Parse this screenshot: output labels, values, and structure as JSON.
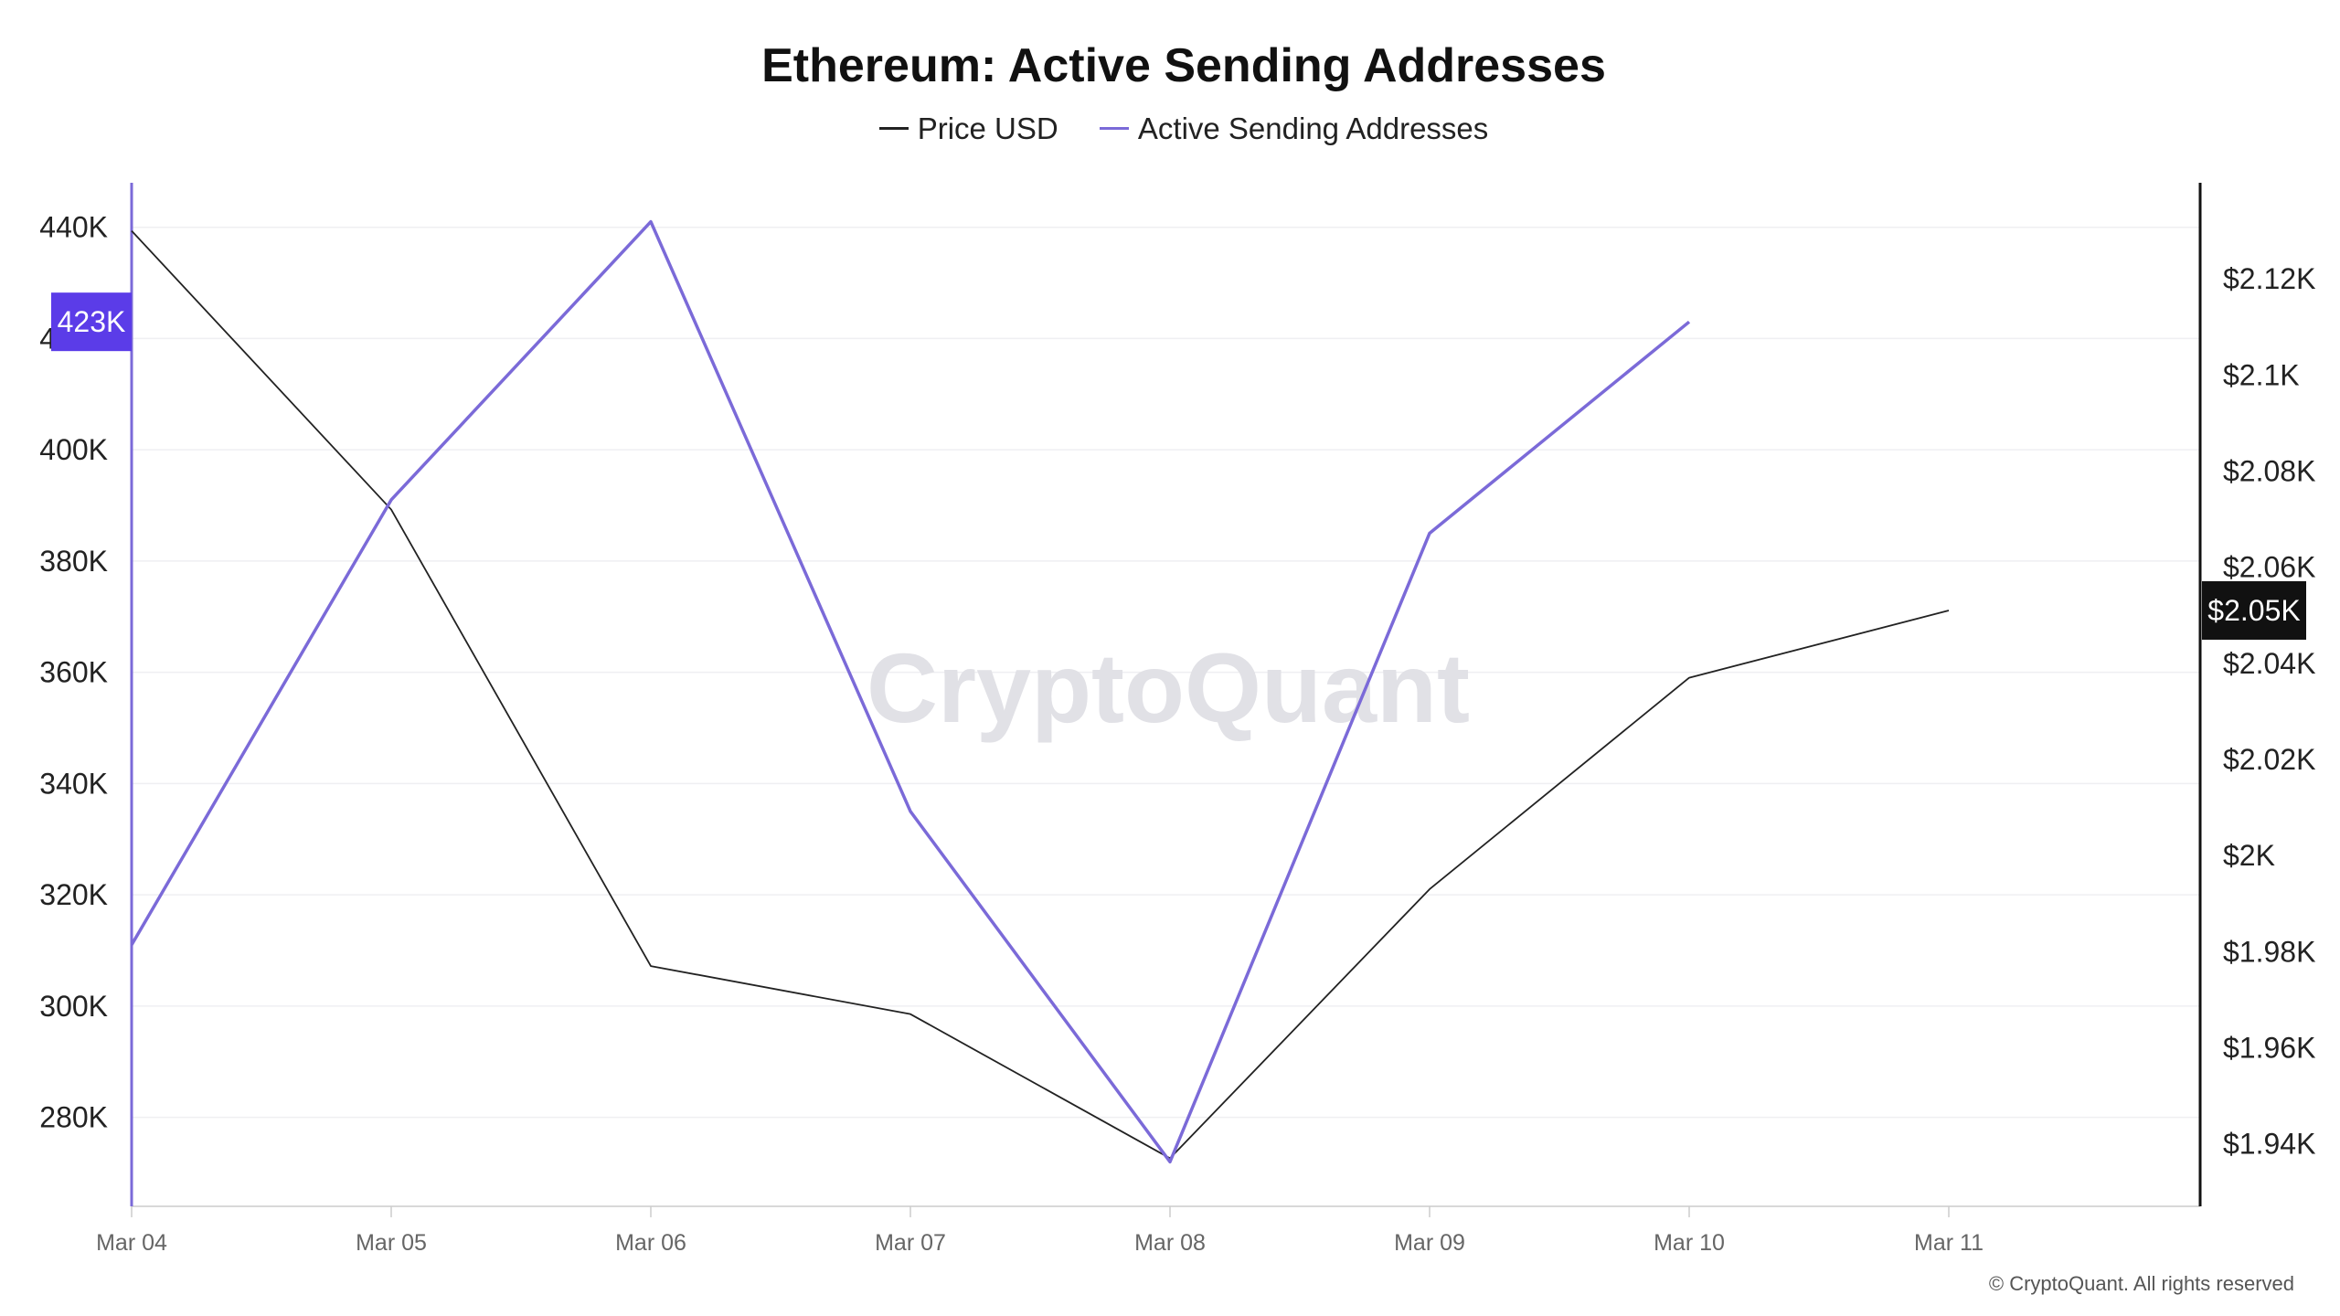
{
  "chart_data": {
    "type": "line",
    "title": "Ethereum: Active Sending Addresses",
    "x": [
      "Mar 04",
      "Mar 05",
      "Mar 06",
      "Mar 07",
      "Mar 08",
      "Mar 09",
      "Mar 10",
      "Mar 11"
    ],
    "series": [
      {
        "name": "Price USD",
        "axis": "right",
        "color": "#222222",
        "values": [
          2130,
          2072,
          1977,
          1967,
          1937,
          1993,
          2037,
          2051
        ]
      },
      {
        "name": "Active Sending Addresses",
        "axis": "left",
        "color": "#7b6ad8",
        "values": [
          311000,
          391000,
          441000,
          335000,
          272000,
          385000,
          423000,
          null
        ]
      }
    ],
    "left_axis": {
      "ticks": [
        280000,
        300000,
        320000,
        340000,
        360000,
        380000,
        400000,
        420000,
        440000
      ],
      "tick_labels": [
        "280K",
        "300K",
        "320K",
        "340K",
        "360K",
        "380K",
        "400K",
        "420K",
        "440K"
      ],
      "range": [
        264000,
        448000
      ],
      "current_value_label": "423K",
      "current_value": 423000,
      "current_color": "#5b3ce8"
    },
    "right_axis": {
      "ticks": [
        1940,
        1960,
        1980,
        2000,
        2020,
        2040,
        2060,
        2080,
        2100,
        2120
      ],
      "tick_labels": [
        "$1.94K",
        "$1.96K",
        "$1.98K",
        "$2K",
        "$2.02K",
        "$2.04K",
        "$2.06K",
        "$2.08K",
        "$2.1K",
        "$2.12K"
      ],
      "range": [
        1927,
        2140
      ],
      "current_value_label": "$2.05K",
      "current_value": 2051,
      "current_color": "#111111"
    },
    "grid": true,
    "legend_position": "top-center",
    "watermark": "CryptoQuant",
    "copyright": "© CryptoQuant. All rights reserved"
  }
}
